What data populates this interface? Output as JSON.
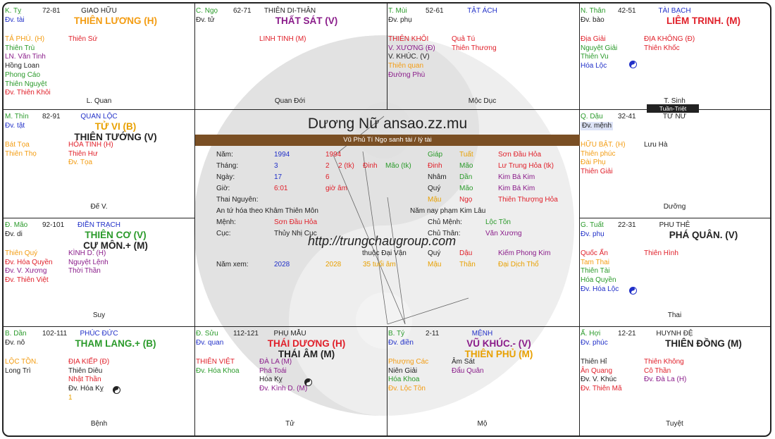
{
  "center": {
    "title": "Dương Nữ ansao.zz.mu",
    "subtitle": "Vũ Phủ Tí Ngọ sanh tài / lý tài",
    "url": "http://trungchaugroup.com",
    "rows": [
      {
        "label": "Năm:",
        "v1": "1994",
        "v2": "1994"
      },
      {
        "label": "Tháng:",
        "v1": "3",
        "v2": "2",
        "v3": "2 (tk)"
      },
      {
        "label": "Ngày:",
        "v1": "17",
        "v2": "6"
      },
      {
        "label": "Giờ:",
        "v1": "6:01",
        "v2": "giờ âm"
      }
    ],
    "thai_nguyen": "Thai Nguyên:",
    "an_tu_hoa": "An tứ hóa theo Khâm Thiên Môn",
    "menh_label": "Mệnh:",
    "menh_value": "Sơn Đầu Hỏa",
    "cuc_label": "Cục:",
    "cuc_value": "Thủy Nhị Cục",
    "nam_xem_label": "Năm xem:",
    "nam_xem_1": "2028",
    "nam_xem_2": "2028",
    "tuoi": "35 tuổi âm",
    "can_chi": [
      {
        "c1": "Giáp",
        "c2": "Tuất",
        "c3": "Sơn Đầu Hỏa"
      },
      {
        "c0": "Đinh",
        "c0b": "Mão (tk)",
        "c1": "Đinh",
        "c2": "Mão",
        "c3": "Lư Trung Hỏa (tk)"
      },
      {
        "c1": "Nhâm",
        "c2": "Dần",
        "c3": "Kim Bá Kim"
      },
      {
        "c1": "Quý",
        "c2": "Mão",
        "c3": "Kim Bá Kim"
      },
      {
        "c1": "Mậu",
        "c2": "Ngọ",
        "c3": "Thiên Thượng Hỏa"
      }
    ],
    "nam_nay": "Năm nay phạm Kim Lâu",
    "chu_menh_label": "Chủ Mệnh:",
    "chu_menh_value": "Lộc Tồn",
    "chu_than_label": "Chủ Thân:",
    "chu_than_value": "Văn Xương",
    "dai_van_label": "thuộc Đại Vận",
    "dai_van": {
      "c1": "Quý",
      "c2": "Dậu",
      "c3": "Kiếm Phong Kim"
    },
    "nam_xem_cc": {
      "c1": "Mậu",
      "c2": "Thân",
      "c3": "Đại Dịch Thổ"
    }
  },
  "tuan_triet": "Tuần-Triệt",
  "colors": {
    "orange": "#f39c12",
    "green": "#2a9a2a",
    "red": "#e0202a",
    "purple": "#8a1c8a",
    "blue": "#2130c8",
    "yellow": "#e8a000",
    "dark": "#222222"
  },
  "cells": {
    "ty": {
      "can": "K. Tỵ",
      "age": "72-81",
      "palace": "GIAO HỮU",
      "dv": "Đv. tài",
      "main": [
        {
          "t": "THIÊN LƯƠNG (H)",
          "c": "orange"
        }
      ],
      "left": [
        {
          "t": "TẢ PHÙ. (H)",
          "c": "orange"
        },
        {
          "t": "Thiên Trù",
          "c": "green"
        },
        {
          "t": "LN. Văn Tinh",
          "c": "purple"
        },
        {
          "t": "Hồng Loan",
          "c": "dark"
        },
        {
          "t": "Phong Cáo",
          "c": "green"
        },
        {
          "t": "Thiên Nguyệt",
          "c": "green"
        },
        {
          "t": "Đv. Thiên Khôi",
          "c": "red"
        }
      ],
      "right": [
        {
          "t": "Thiên Sứ",
          "c": "red"
        }
      ],
      "stage": "L. Quan"
    },
    "ngo": {
      "can": "C. Ngọ",
      "age": "62-71",
      "palace": "THIÊN DI-THÂN",
      "dv": "Đv. tử",
      "main": [
        {
          "t": "THẤT SÁT (V)",
          "c": "purple"
        }
      ],
      "left": [],
      "right": [
        {
          "t": "LINH TINH (M)",
          "c": "red"
        }
      ],
      "stage": "Quan Đới"
    },
    "mui": {
      "can": "T. Mùi",
      "age": "52-61",
      "palace": "TẬT ÁCH",
      "dv": "Đv. phụ",
      "main": [],
      "left": [
        {
          "t": "THIÊN KHÔI",
          "c": "red"
        },
        {
          "t": "V. XƯƠNG (Đ)",
          "c": "purple"
        },
        {
          "t": "V. KHÚC. (V)",
          "c": "dark"
        },
        {
          "t": "Thiên quan",
          "c": "orange"
        },
        {
          "t": "Đường Phù",
          "c": "purple"
        }
      ],
      "right": [
        {
          "t": "Quả Tú",
          "c": "red"
        },
        {
          "t": "Thiên Thương",
          "c": "red"
        }
      ],
      "stage": "Mộc Dục"
    },
    "than": {
      "can": "N. Thân",
      "age": "42-51",
      "palace": "TÀI BẠCH",
      "dv": "Đv. bào",
      "main": [
        {
          "t": "LIÊM TRINH. (M)",
          "c": "red"
        }
      ],
      "left": [
        {
          "t": "Địa Giải",
          "c": "red"
        },
        {
          "t": "Nguyệt Giải",
          "c": "green"
        },
        {
          "t": "Thiên Vu",
          "c": "green"
        },
        {
          "t": "Hóa Lộc",
          "c": "blue"
        }
      ],
      "right": [
        {
          "t": "ĐỊA KHÔNG (Đ)",
          "c": "red"
        },
        {
          "t": "Thiên Khốc",
          "c": "red"
        }
      ],
      "stage": "T. Sinh"
    },
    "thin": {
      "can": "M. Thìn",
      "age": "82-91",
      "palace": "QUAN LỘC",
      "dv": "Đv. tật",
      "main": [
        {
          "t": "TỬ VI (B)",
          "c": "yellow"
        },
        {
          "t": "THIÊN TƯỚNG (V)",
          "c": "dark"
        }
      ],
      "left": [
        {
          "t": "Bát Tọa",
          "c": "orange"
        },
        {
          "t": "Thiên Thọ",
          "c": "orange"
        }
      ],
      "right": [
        {
          "t": "HỎA TINH (H)",
          "c": "red"
        },
        {
          "t": "Thiên Hư",
          "c": "red"
        },
        {
          "t": "Đv. Tọa",
          "c": "orange"
        }
      ],
      "stage": "Đế V."
    },
    "dau": {
      "can": "Q. Dậu",
      "age": "32-41",
      "palace": "TỬ NỮ",
      "dv": "Đv. mệnh",
      "main": [],
      "left": [
        {
          "t": "HỮU BẬT. (H)",
          "c": "orange"
        },
        {
          "t": "Thiên phúc",
          "c": "orange"
        },
        {
          "t": "Đài Phụ",
          "c": "orange"
        },
        {
          "t": "Thiên Giải",
          "c": "red"
        }
      ],
      "right": [
        {
          "t": "Lưu Hà",
          "c": "dark"
        }
      ],
      "stage": "Dưỡng"
    },
    "mao": {
      "can": "Đ. Mão",
      "age": "92-101",
      "palace": "ĐIỀN TRẠCH",
      "dv": "Đv. di",
      "main": [
        {
          "t": "THIÊN CƠ (V)",
          "c": "green"
        },
        {
          "t": "CỰ MÔN.+ (M)",
          "c": "dark"
        }
      ],
      "left": [
        {
          "t": "Thiên Quý",
          "c": "orange"
        },
        {
          "t": "Đv. Hóa Quyền",
          "c": "red"
        },
        {
          "t": "Đv. V. Xương",
          "c": "purple"
        },
        {
          "t": "Đv. Thiên Việt",
          "c": "red"
        }
      ],
      "right": [
        {
          "t": "KÌNH D. (H)",
          "c": "purple"
        },
        {
          "t": "Nguyệt Lệnh",
          "c": "purple"
        },
        {
          "t": "Thời Thần",
          "c": "purple"
        }
      ],
      "stage": "Suy"
    },
    "tuat": {
      "can": "G. Tuất",
      "age": "22-31",
      "palace": "PHU THÊ",
      "dv": "Đv. phụ",
      "main": [
        {
          "t": "PHÁ QUÂN. (V)",
          "c": "dark"
        }
      ],
      "left": [
        {
          "t": "Quốc Ấn",
          "c": "red"
        },
        {
          "t": "Tam Thai",
          "c": "orange"
        },
        {
          "t": "Thiên Tài",
          "c": "green"
        },
        {
          "t": "Hóa Quyền",
          "c": "green"
        },
        {
          "t": "Đv. Hóa Lộc",
          "c": "blue"
        }
      ],
      "right": [
        {
          "t": "Thiên Hình",
          "c": "red"
        }
      ],
      "stage": "Thai"
    },
    "dan": {
      "can": "B. Dần",
      "age": "102-111",
      "palace": "PHÚC ĐỨC",
      "dv": "Đv. nô",
      "main": [
        {
          "t": "THAM LANG.+ (B)",
          "c": "green"
        }
      ],
      "left": [
        {
          "t": "LỘC TỒN.",
          "c": "orange"
        },
        {
          "t": "Long Trì",
          "c": "dark"
        }
      ],
      "right": [
        {
          "t": "ĐỊA KIẾP (Đ)",
          "c": "red"
        },
        {
          "t": "Thiên Diêu",
          "c": "dark"
        },
        {
          "t": "Nhật Thần",
          "c": "red"
        },
        {
          "t": "Đv. Hóa Kỵ",
          "c": "dark"
        },
        {
          "t": "1",
          "c": "yellow"
        }
      ],
      "stage": "Bệnh"
    },
    "suu": {
      "can": "Đ. Sửu",
      "age": "112-121",
      "palace": "PHỤ MẪU",
      "dv": "Đv. quan",
      "main": [
        {
          "t": "THÁI DƯƠNG (H)",
          "c": "red"
        },
        {
          "t": "THÁI ÂM (M)",
          "c": "dark"
        }
      ],
      "left": [
        {
          "t": "THIÊN VIỆT",
          "c": "red"
        },
        {
          "t": "Đv. Hóa Khoa",
          "c": "green"
        }
      ],
      "right": [
        {
          "t": "ĐÀ LA (M)",
          "c": "purple"
        },
        {
          "t": "Phá Toái",
          "c": "purple"
        },
        {
          "t": "Hóa Kỵ",
          "c": "dark"
        },
        {
          "t": "Đv. Kình D. (M)",
          "c": "purple"
        }
      ],
      "stage": "Tử"
    },
    "ty2": {
      "can": "B. Tý",
      "age": "2-11",
      "palace": "MỆNH",
      "dv": "Đv. điền",
      "main": [
        {
          "t": "VŨ KHÚC.- (V)",
          "c": "purple"
        },
        {
          "t": "THIÊN PHỦ (M)",
          "c": "yellow"
        }
      ],
      "left": [
        {
          "t": "Phượng Các",
          "c": "orange"
        },
        {
          "t": "Niên Giải",
          "c": "dark"
        },
        {
          "t": "Hóa Khoa",
          "c": "green"
        },
        {
          "t": "Đv. Lộc Tồn",
          "c": "orange"
        }
      ],
      "right": [
        {
          "t": "Âm Sát",
          "c": "dark"
        },
        {
          "t": "Đẩu Quân",
          "c": "purple"
        }
      ],
      "stage": "Mộ"
    },
    "hoi": {
      "can": "Ấ. Hợi",
      "age": "12-21",
      "palace": "HUYNH ĐỆ",
      "dv": "Đv. phúc",
      "main": [
        {
          "t": "THIÊN ĐỒNG (M)",
          "c": "dark"
        }
      ],
      "left": [
        {
          "t": "Thiên Hỉ",
          "c": "dark"
        },
        {
          "t": "Ân Quang",
          "c": "red"
        },
        {
          "t": "Đv. V. Khúc",
          "c": "dark"
        },
        {
          "t": "Đv. Thiên Mã",
          "c": "red"
        }
      ],
      "right": [
        {
          "t": "Thiên Không",
          "c": "red"
        },
        {
          "t": "Cô Thần",
          "c": "red"
        },
        {
          "t": "Đv. Đà La (H)",
          "c": "purple"
        }
      ],
      "stage": "Tuyệt"
    }
  }
}
